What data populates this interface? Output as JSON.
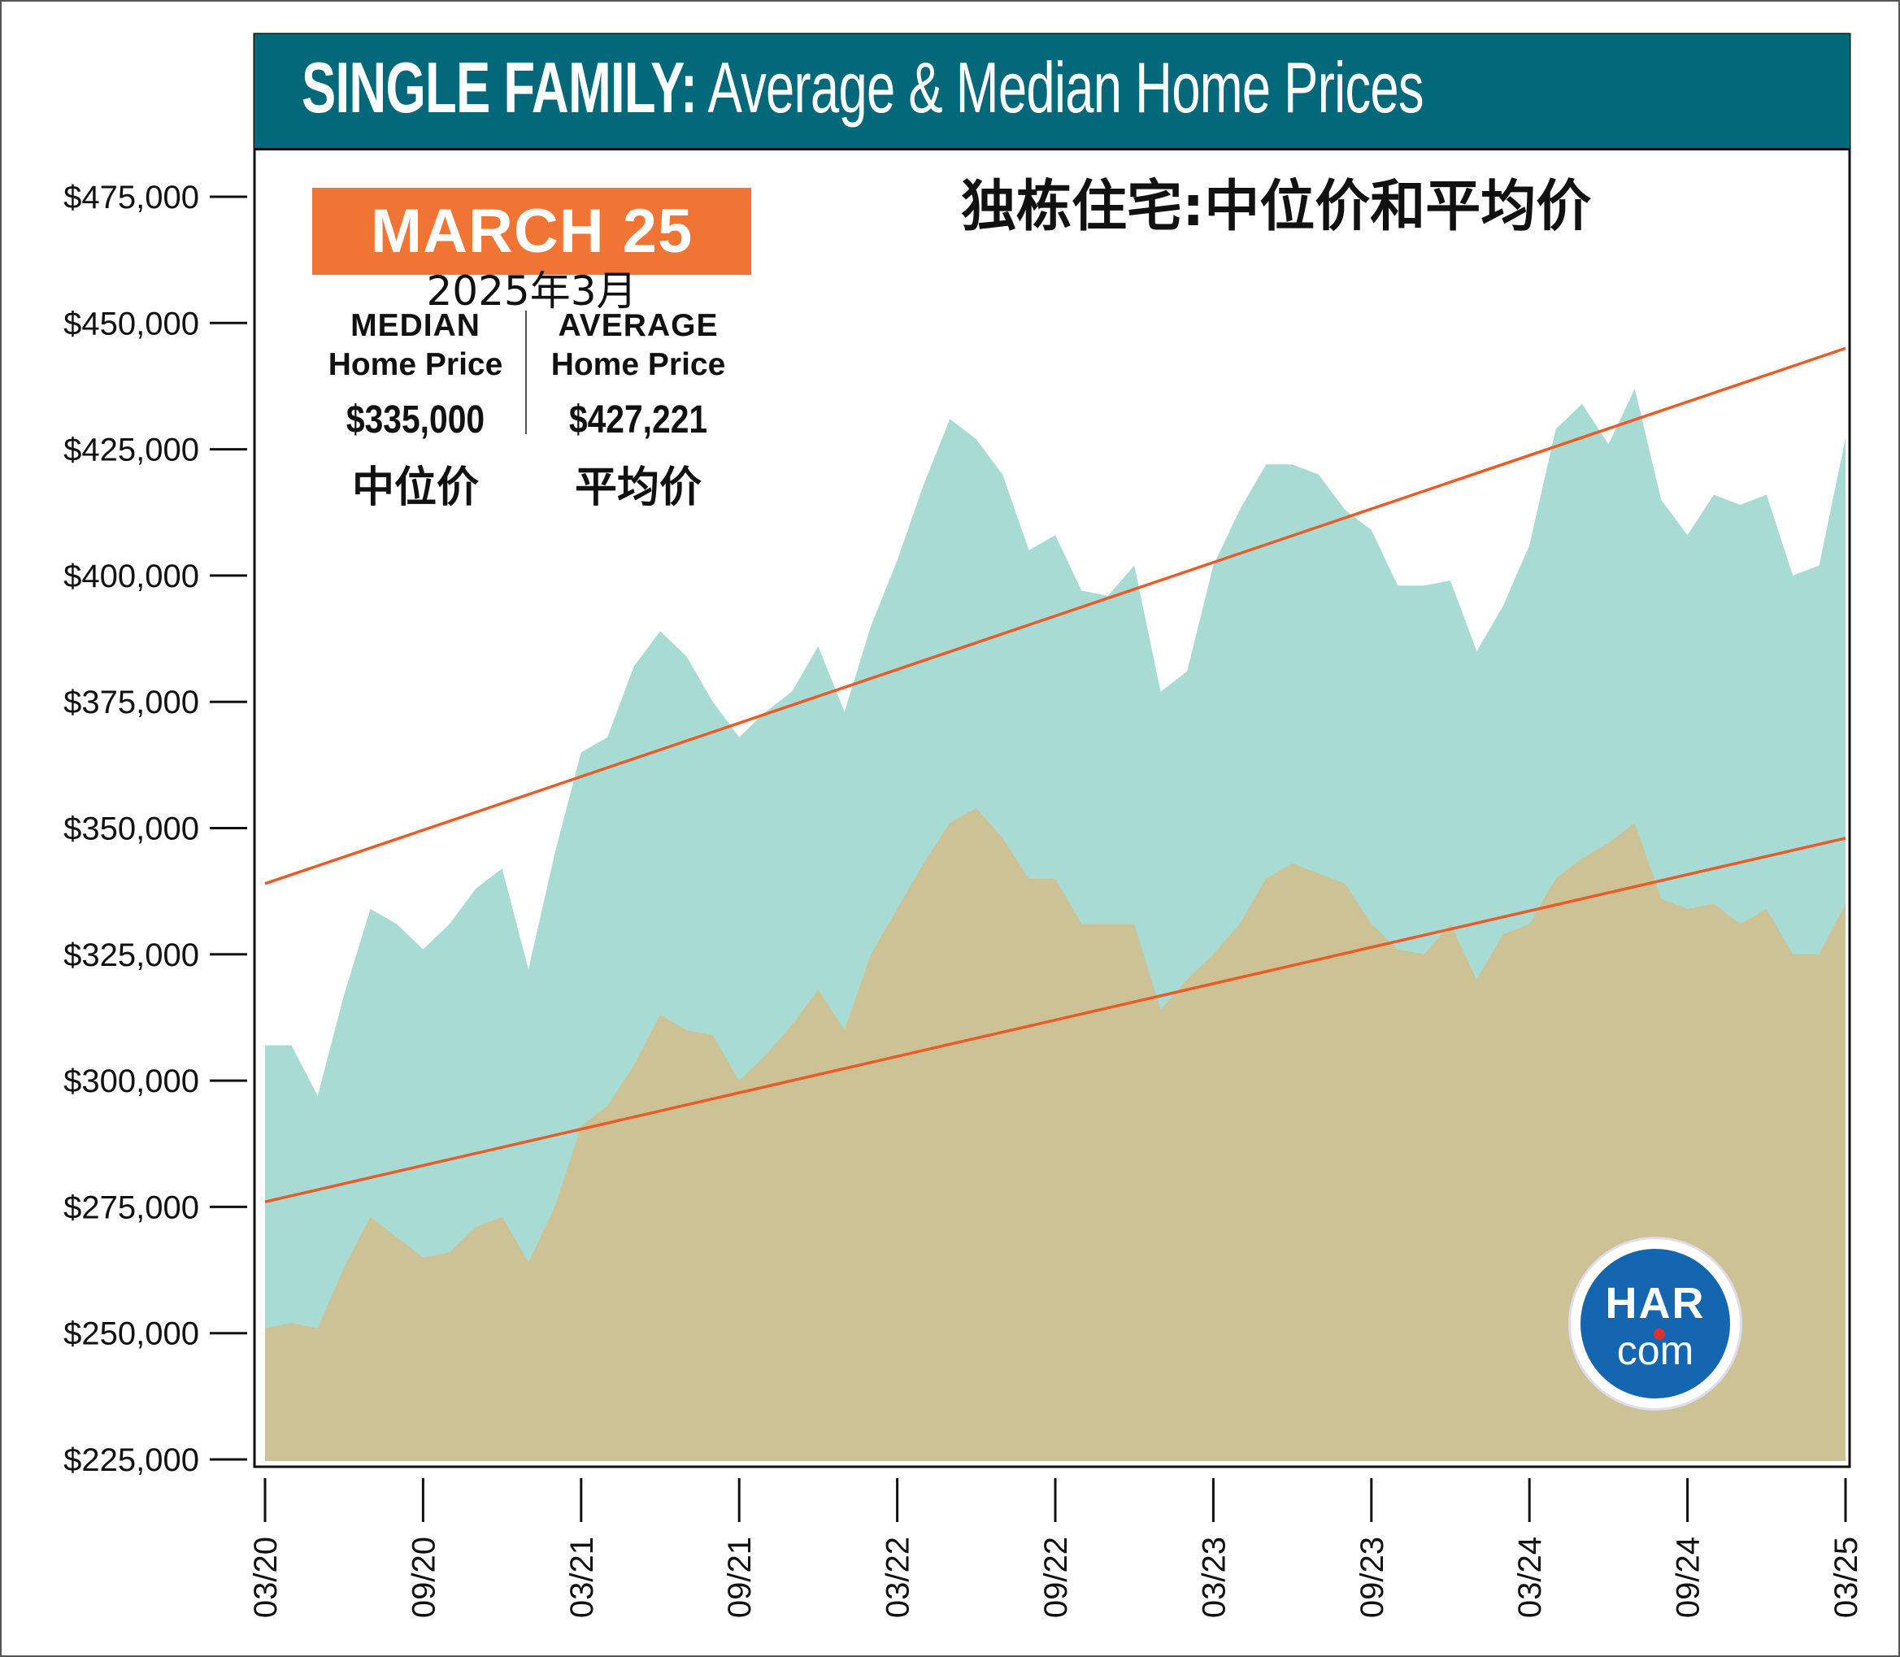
{
  "header": {
    "title_bold": "SINGLE FAMILY:",
    "title_rest": "Average & Median Home Prices",
    "title_cn": "独栋住宅:中位价和平均价"
  },
  "badge": {
    "month": "MARCH 25",
    "month_cn": "2025年3月"
  },
  "stats": {
    "median": {
      "label": "MEDIAN",
      "sublabel": "Home Price",
      "value": "$335,000",
      "label_cn": "中位价"
    },
    "average": {
      "label": "AVERAGE",
      "sublabel": "Home Price",
      "value": "$427,221",
      "label_cn": "平均价"
    }
  },
  "logo": {
    "top": "HAR",
    "bottom": "com"
  },
  "colors": {
    "title_bar": "#03687a",
    "badge": "#f07434",
    "average_fill": "#a7dbd3",
    "median_fill": "#cdc295",
    "trend_line": "#ea5b25",
    "logo": "#1566b0"
  },
  "chart_data": {
    "type": "area",
    "ylim": [
      225000,
      475000
    ],
    "y_ticks": [
      "$225,000",
      "$250,000",
      "$275,000",
      "$300,000",
      "$325,000",
      "$350,000",
      "$375,000",
      "$400,000",
      "$425,000",
      "$450,000",
      "$475,000"
    ],
    "y_tick_values": [
      225000,
      250000,
      275000,
      300000,
      325000,
      350000,
      375000,
      400000,
      425000,
      450000,
      475000
    ],
    "x_ticks": [
      "03/20",
      "09/20",
      "03/21",
      "09/21",
      "03/22",
      "09/22",
      "03/23",
      "09/23",
      "03/24",
      "09/24",
      "03/25"
    ],
    "x_tick_index": [
      0,
      6,
      12,
      18,
      24,
      30,
      36,
      42,
      48,
      54,
      60
    ],
    "x": [
      "03/20",
      "04/20",
      "05/20",
      "06/20",
      "07/20",
      "08/20",
      "09/20",
      "10/20",
      "11/20",
      "12/20",
      "01/21",
      "02/21",
      "03/21",
      "04/21",
      "05/21",
      "06/21",
      "07/21",
      "08/21",
      "09/21",
      "10/21",
      "11/21",
      "12/21",
      "01/22",
      "02/22",
      "03/22",
      "04/22",
      "05/22",
      "06/22",
      "07/22",
      "08/22",
      "09/22",
      "10/22",
      "11/22",
      "12/22",
      "01/23",
      "02/23",
      "03/23",
      "04/23",
      "05/23",
      "06/23",
      "07/23",
      "08/23",
      "09/23",
      "10/23",
      "11/23",
      "12/23",
      "01/24",
      "02/24",
      "03/24",
      "04/24",
      "05/24",
      "06/24",
      "07/24",
      "08/24",
      "09/24",
      "10/24",
      "11/24",
      "12/24",
      "01/25",
      "02/25",
      "03/25"
    ],
    "series": [
      {
        "name": "AVERAGE",
        "values": [
          307000,
          307000,
          297000,
          317000,
          334000,
          331000,
          326000,
          331000,
          338000,
          342000,
          322000,
          345000,
          365000,
          368000,
          382000,
          389000,
          384000,
          375000,
          368000,
          373000,
          377000,
          386000,
          373000,
          390000,
          403000,
          418000,
          431000,
          427000,
          420000,
          405000,
          408000,
          397000,
          396000,
          402000,
          377000,
          381000,
          402000,
          413000,
          422000,
          422000,
          420000,
          413000,
          409000,
          398000,
          398000,
          399000,
          385000,
          394000,
          406000,
          429000,
          434000,
          426000,
          437000,
          415000,
          408000,
          416000,
          414000,
          416000,
          400000,
          402000,
          427221
        ]
      },
      {
        "name": "MEDIAN",
        "values": [
          251000,
          252000,
          251000,
          263000,
          273000,
          269000,
          265000,
          266000,
          271000,
          273000,
          264000,
          275000,
          291000,
          295000,
          303000,
          313000,
          310000,
          309000,
          300000,
          305000,
          311000,
          318000,
          310000,
          325000,
          334000,
          343000,
          351000,
          354000,
          348000,
          340000,
          340000,
          331000,
          331000,
          331000,
          314000,
          320000,
          325000,
          331000,
          340000,
          343000,
          341000,
          339000,
          331000,
          326000,
          325000,
          331000,
          320000,
          329000,
          331000,
          340000,
          344000,
          347000,
          351000,
          336000,
          334000,
          335000,
          331000,
          334000,
          325000,
          325000,
          335000
        ]
      }
    ],
    "trend_lines": [
      {
        "series": "AVERAGE",
        "start": 339000,
        "end": 445000
      },
      {
        "series": "MEDIAN",
        "start": 276000,
        "end": 348000
      }
    ]
  }
}
